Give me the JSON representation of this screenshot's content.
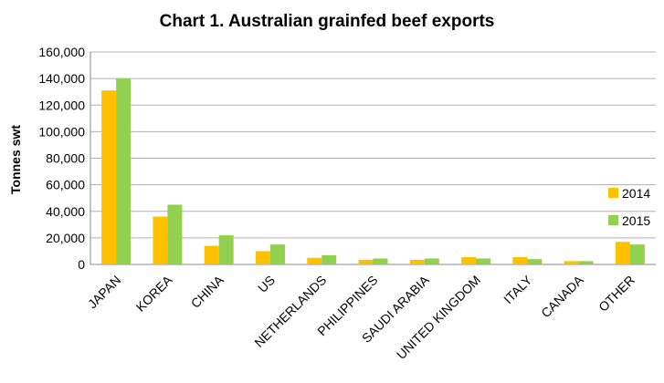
{
  "chart_data": {
    "type": "bar",
    "title": "Chart 1. Australian grainfed beef exports",
    "xlabel": "",
    "ylabel": "Tonnes swt",
    "ylim": [
      0,
      160000
    ],
    "yticks": [
      "0",
      "20,000",
      "40,000",
      "60,000",
      "80,000",
      "100,000",
      "120,000",
      "140,000",
      "160,000"
    ],
    "categories": [
      "JAPAN",
      "KOREA",
      "CHINA",
      "US",
      "NETHERLANDS",
      "PHILIPPINES",
      "SAUDI ARABIA",
      "UNITED KINGDOM",
      "ITALY",
      "CANADA",
      "OTHER"
    ],
    "series": [
      {
        "name": "2014",
        "color": "#ffc000",
        "values": [
          131000,
          36000,
          14000,
          10000,
          5000,
          3500,
          3500,
          5500,
          5500,
          2500,
          17000
        ]
      },
      {
        "name": "2015",
        "color": "#92d050",
        "values": [
          140000,
          45000,
          22000,
          15000,
          7000,
          4500,
          4500,
          4500,
          4000,
          2500,
          15000
        ]
      }
    ],
    "grid": true,
    "legend": "right"
  }
}
